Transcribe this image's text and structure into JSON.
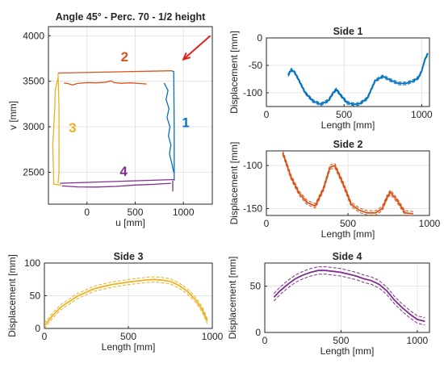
{
  "colors": {
    "blue": "#0072BD",
    "orange": "#D95319",
    "yellow": "#EDB120",
    "purple": "#7E2F8E",
    "arrow": "#E0201B"
  },
  "chart_data": [
    {
      "id": "uv",
      "type": "line",
      "title": "Angle 45° - Perc. 70 - 1/2 height",
      "xlabel": "u [mm]",
      "ylabel": "v [mm]",
      "xlim": [
        -400,
        1300
      ],
      "ylim": [
        2150,
        4100
      ],
      "xticks": [
        0,
        500,
        1000
      ],
      "yticks": [
        2500,
        3000,
        3500,
        4000
      ],
      "grid": true,
      "annotations": [
        {
          "text": "1",
          "color": "blue",
          "x": 1025,
          "y": 3050
        },
        {
          "text": "2",
          "color": "orange",
          "x": 390,
          "y": 3770
        },
        {
          "text": "3",
          "color": "yellow",
          "x": -150,
          "y": 2990
        },
        {
          "text": "4",
          "color": "purple",
          "x": 380,
          "y": 2515
        }
      ],
      "arrow": {
        "from": [
          1280,
          4000
        ],
        "to": [
          1000,
          3740
        ],
        "color": "arrow"
      },
      "series": [
        {
          "color": "orange",
          "x": [
            -300,
            880
          ],
          "y": [
            3590,
            3615
          ]
        },
        {
          "color": "orange",
          "x": [
            -240,
            -200,
            -150,
            -100,
            0,
            100,
            200,
            250,
            280,
            350,
            450,
            550,
            620
          ],
          "y": [
            3480,
            3475,
            3460,
            3475,
            3485,
            3482,
            3490,
            3505,
            3485,
            3478,
            3482,
            3475,
            3470
          ]
        },
        {
          "color": "blue",
          "x": [
            880,
            900,
            905,
            905
          ],
          "y": [
            3615,
            3605,
            3000,
            2410
          ]
        },
        {
          "color": "blue",
          "x": [
            800,
            840,
            820,
            850,
            830,
            860,
            845,
            870,
            855,
            880,
            900
          ],
          "y": [
            3480,
            3400,
            3300,
            3200,
            3100,
            3000,
            2900,
            2800,
            2700,
            2600,
            2500
          ]
        },
        {
          "color": "yellow",
          "x": [
            -300,
            -290,
            -290,
            -300
          ],
          "y": [
            3590,
            3200,
            2500,
            2380
          ]
        },
        {
          "color": "yellow",
          "x": [
            -300,
            -330,
            -335,
            -345,
            -355,
            -350,
            -345,
            -270
          ],
          "y": [
            3540,
            3400,
            3200,
            3000,
            2800,
            2600,
            2370,
            2360
          ]
        },
        {
          "color": "purple",
          "x": [
            -280,
            905
          ],
          "y": [
            2380,
            2420
          ]
        },
        {
          "color": "purple",
          "x": [
            -260,
            -100,
            100,
            300,
            500,
            700,
            870
          ],
          "y": [
            2350,
            2340,
            2338,
            2345,
            2360,
            2368,
            2380
          ]
        },
        {
          "color": "purple",
          "x": [
            890,
            890
          ],
          "y": [
            2410,
            2290
          ]
        }
      ]
    },
    {
      "id": "side1",
      "type": "line",
      "title": "Side 1",
      "xlabel": "Length [mm]",
      "ylabel": "Displacement [mm]",
      "xlim": [
        0,
        1050
      ],
      "ylim": [
        -125,
        0
      ],
      "xticks": [
        0,
        500,
        1000
      ],
      "yticks": [
        -100,
        -50,
        0
      ],
      "grid": true,
      "color": "blue",
      "band": 2.5,
      "x": [
        140,
        160,
        180,
        200,
        250,
        300,
        350,
        400,
        430,
        450,
        480,
        520,
        560,
        600,
        650,
        700,
        750,
        800,
        850,
        900,
        950,
        980,
        1000,
        1020,
        1040
      ],
      "y": [
        -68,
        -58,
        -62,
        -72,
        -100,
        -115,
        -121,
        -114,
        -100,
        -94,
        -105,
        -118,
        -121,
        -120,
        -110,
        -78,
        -70,
        -77,
        -83,
        -83,
        -78,
        -72,
        -60,
        -40,
        -28
      ]
    },
    {
      "id": "side2",
      "type": "line",
      "title": "Side 2",
      "xlabel": "Length [mm]",
      "ylabel": "Displacement [mm]",
      "xlim": [
        0,
        1000
      ],
      "ylim": [
        -158,
        -83
      ],
      "xticks": [
        0,
        500,
        1000
      ],
      "yticks": [
        -150,
        -100
      ],
      "grid": true,
      "color": "orange",
      "band": 2.5,
      "x": [
        100,
        150,
        200,
        250,
        300,
        350,
        390,
        420,
        470,
        520,
        570,
        620,
        670,
        710,
        740,
        760,
        800,
        850,
        900
      ],
      "y": [
        -85,
        -113,
        -132,
        -143,
        -147,
        -127,
        -102,
        -100,
        -121,
        -145,
        -152,
        -155,
        -155,
        -150,
        -137,
        -131,
        -140,
        -155,
        -156
      ]
    },
    {
      "id": "side3",
      "type": "line",
      "title": "Side 3",
      "xlabel": "Length [mm]",
      "ylabel": "Displacement [mm]",
      "xlim": [
        0,
        1000
      ],
      "ylim": [
        0,
        100
      ],
      "xticks": [
        0,
        500,
        1000
      ],
      "yticks": [
        0,
        50,
        100
      ],
      "grid": true,
      "color": "yellow",
      "band": 4,
      "x": [
        0,
        50,
        100,
        200,
        300,
        400,
        500,
        600,
        650,
        700,
        750,
        800,
        850,
        900,
        940,
        970
      ],
      "y": [
        4,
        20,
        33,
        50,
        61,
        67,
        71,
        74,
        75,
        74,
        72,
        66,
        57,
        44,
        29,
        11
      ]
    },
    {
      "id": "side4",
      "type": "line",
      "title": "Side 4",
      "xlabel": "Length [mm]",
      "ylabel": "Displacement [mm]",
      "xlim": [
        0,
        1080
      ],
      "ylim": [
        0,
        75
      ],
      "xticks": [
        0,
        500,
        1000
      ],
      "yticks": [
        0,
        50
      ],
      "grid": true,
      "color": "purple",
      "band": 4,
      "x": [
        60,
        100,
        150,
        200,
        250,
        300,
        350,
        400,
        450,
        500,
        550,
        600,
        650,
        700,
        750,
        800,
        850,
        900,
        950,
        1000,
        1050
      ],
      "y": [
        38,
        45,
        52,
        58,
        62,
        65,
        67,
        67,
        66,
        65,
        63,
        61,
        58,
        56,
        52,
        45,
        35,
        27,
        20,
        14,
        12
      ]
    }
  ]
}
